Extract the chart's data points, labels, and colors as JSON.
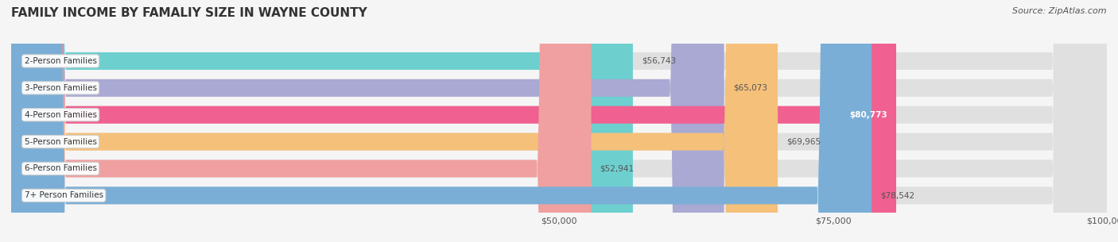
{
  "title": "FAMILY INCOME BY FAMALIY SIZE IN WAYNE COUNTY",
  "source": "Source: ZipAtlas.com",
  "categories": [
    "2-Person Families",
    "3-Person Families",
    "4-Person Families",
    "5-Person Families",
    "6-Person Families",
    "7+ Person Families"
  ],
  "values": [
    56743,
    65073,
    80773,
    69965,
    52941,
    78542
  ],
  "bar_colors": [
    "#6ecfcf",
    "#a9a9d4",
    "#f06090",
    "#f5c07a",
    "#f0a0a0",
    "#7aaed6"
  ],
  "xlim": [
    0,
    100000
  ],
  "title_fontsize": 11,
  "source_fontsize": 8,
  "bar_height": 0.65,
  "background_color": "#f5f5f5"
}
